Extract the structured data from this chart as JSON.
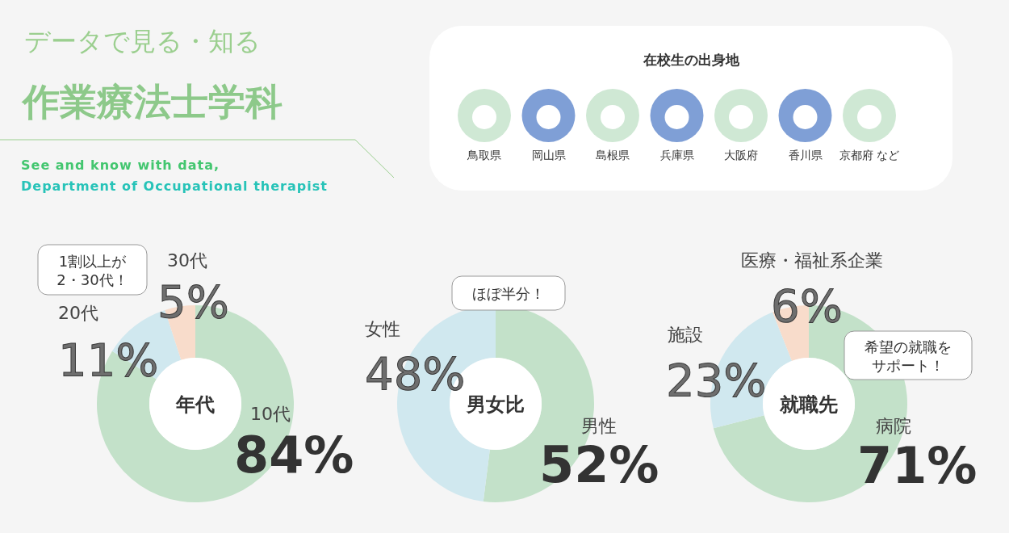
{
  "chart_data": [
    {
      "type": "other",
      "title": "作業療法士学科",
      "subtitle": "データで見る・知る",
      "annotations": [
        "See and know with data,",
        "Department of Occupational therapist"
      ]
    },
    {
      "type": "other",
      "title": "在校生の出身地",
      "categories": [
        "鳥取県",
        "岡山県",
        "島根県",
        "兵庫県",
        "大阪府",
        "香川県",
        "京都府 など"
      ]
    },
    {
      "type": "donut",
      "title": "年代",
      "categories": [
        "10代",
        "20代",
        "30代"
      ],
      "values": [
        84,
        11,
        5
      ],
      "colors": [
        "#c3e1c9",
        "#d0e8ef",
        "#f8dccb"
      ],
      "value_labels": [
        "84%",
        "11%",
        "5%"
      ],
      "annotations": [
        "1割以上が",
        "2・30代！"
      ]
    },
    {
      "type": "donut",
      "title": "男女比",
      "categories": [
        "男性",
        "女性"
      ],
      "values": [
        52,
        48
      ],
      "colors": [
        "#c3e1c9",
        "#d0e8ef"
      ],
      "value_labels": [
        "52%",
        "48%"
      ],
      "annotations": [
        "ほぼ半分！"
      ]
    },
    {
      "type": "donut",
      "title": "就職先",
      "categories": [
        "病院",
        "施設",
        "医療・福祉系企業"
      ],
      "values": [
        71,
        23,
        6
      ],
      "colors": [
        "#c3e1c9",
        "#d0e8ef",
        "#f8dccb"
      ],
      "value_labels": [
        "71%",
        "23%",
        "6%"
      ],
      "annotations": [
        "希望の就職を",
        "サポート！"
      ]
    }
  ]
}
